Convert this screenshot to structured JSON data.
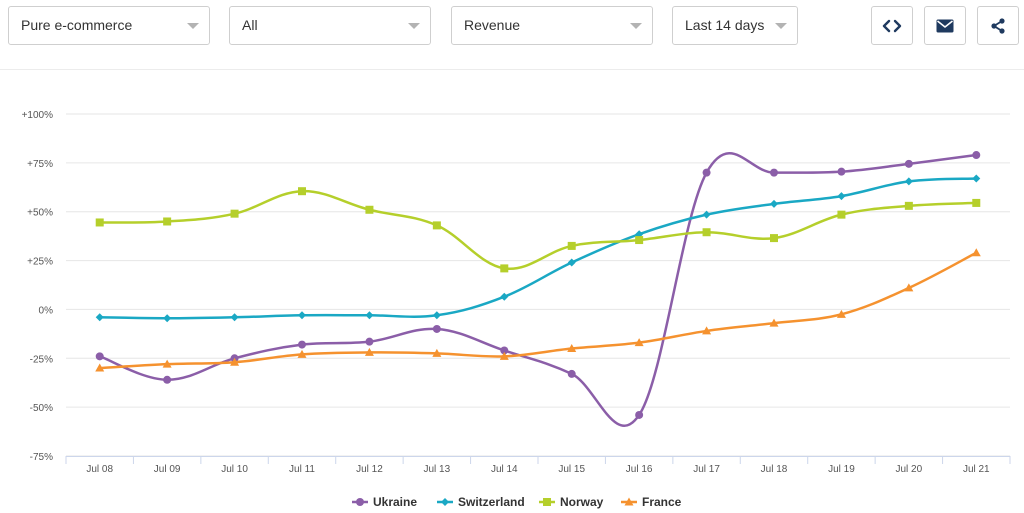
{
  "toolbar": {
    "filters": [
      {
        "value": "Pure e-commerce"
      },
      {
        "value": "All"
      },
      {
        "value": "Revenue"
      },
      {
        "value": "Last 14 days"
      }
    ],
    "buttons": [
      {
        "icon": "code-icon"
      },
      {
        "icon": "envelope-icon"
      },
      {
        "icon": "share-icon"
      }
    ]
  },
  "chart_data": {
    "type": "line",
    "title": "",
    "xlabel": "",
    "ylabel": "",
    "categories": [
      "Jul 08",
      "Jul 09",
      "Jul 10",
      "Jul 11",
      "Jul 12",
      "Jul 13",
      "Jul 14",
      "Jul 15",
      "Jul 16",
      "Jul 17",
      "Jul 18",
      "Jul 19",
      "Jul 20",
      "Jul 21"
    ],
    "ylim": [
      -75,
      100
    ],
    "y_ticks": [
      {
        "value": 100,
        "label": "+100%"
      },
      {
        "value": 75,
        "label": "+75%"
      },
      {
        "value": 50,
        "label": "+50%"
      },
      {
        "value": 25,
        "label": "+25%"
      },
      {
        "value": 0,
        "label": "0%"
      },
      {
        "value": -25,
        "label": "-25%"
      },
      {
        "value": -50,
        "label": "-50%"
      },
      {
        "value": -75,
        "label": "-75%"
      }
    ],
    "grid": true,
    "legend_position": "bottom",
    "series": [
      {
        "name": "Ukraine",
        "color": "#8b5ea8",
        "marker": "circle",
        "values": [
          -24,
          -36,
          -25,
          -18,
          -16.5,
          -10,
          -21,
          -33,
          -54,
          70,
          70,
          70.5,
          74.5,
          79
        ]
      },
      {
        "name": "Switzerland",
        "color": "#1aa8c4",
        "marker": "diamond",
        "values": [
          -4,
          -4.5,
          -4,
          -3,
          -3,
          -3,
          6.5,
          24,
          38.5,
          48.5,
          54,
          58,
          65.5,
          67
        ]
      },
      {
        "name": "Norway",
        "color": "#b5cf2b",
        "marker": "square",
        "values": [
          44.5,
          45,
          49,
          60.5,
          51,
          43,
          21,
          32.5,
          35.5,
          39.5,
          36.5,
          48.5,
          53,
          54.5
        ]
      },
      {
        "name": "France",
        "color": "#f5922f",
        "marker": "triangle",
        "values": [
          -30,
          -28,
          -27,
          -23,
          -22,
          -22.5,
          -24,
          -20,
          -17,
          -11,
          -7,
          -2.5,
          11,
          29
        ]
      }
    ]
  }
}
